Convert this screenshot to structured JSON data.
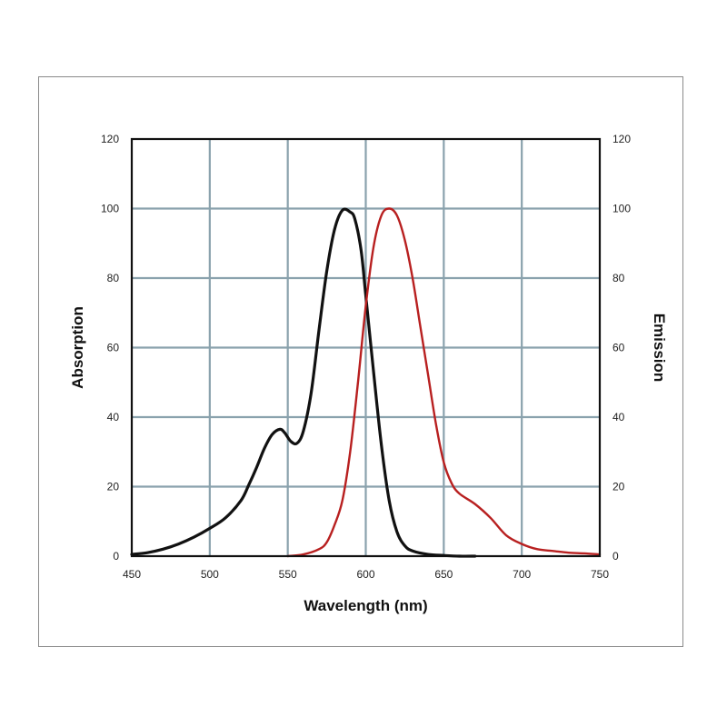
{
  "chart_data": {
    "type": "line",
    "title": "",
    "xlabel": "Wavelength (nm)",
    "ylabel": "Absorption",
    "y2label": "Emission",
    "xlim": [
      450,
      750
    ],
    "ylim": [
      0,
      120
    ],
    "y2lim": [
      0,
      120
    ],
    "xticks": [
      450,
      500,
      550,
      600,
      650,
      700,
      750
    ],
    "yticks": [
      0,
      20,
      40,
      60,
      80,
      100,
      120
    ],
    "grid": true,
    "legend": "none",
    "series": [
      {
        "axis": "left",
        "color": "#111111",
        "x": [
          450,
          460,
          470,
          480,
          490,
          500,
          510,
          520,
          525,
          530,
          535,
          540,
          545,
          548,
          552,
          556,
          560,
          565,
          570,
          575,
          580,
          585,
          590,
          593,
          597,
          600,
          605,
          610,
          615,
          620,
          625,
          630,
          640,
          650,
          660,
          670
        ],
        "y": [
          0.5,
          1,
          2,
          3.5,
          5.5,
          8,
          11,
          16,
          20.5,
          25.5,
          31,
          35,
          36.5,
          35.5,
          33,
          32.5,
          36,
          47,
          65,
          82,
          94,
          99.5,
          99,
          97,
          88,
          75,
          53,
          32,
          16,
          7,
          3,
          1.5,
          0.5,
          0.2,
          0,
          0
        ]
      },
      {
        "axis": "right",
        "color": "#b82020",
        "x": [
          550,
          560,
          570,
          575,
          580,
          585,
          590,
          595,
          600,
          605,
          610,
          615,
          620,
          625,
          630,
          635,
          640,
          645,
          650,
          655,
          660,
          670,
          680,
          690,
          700,
          710,
          720,
          730,
          740,
          750
        ],
        "y": [
          0,
          0.5,
          2,
          4,
          9,
          16,
          30,
          50,
          72,
          89,
          98,
          100,
          98,
          91,
          80,
          66,
          52,
          38,
          27,
          21,
          18,
          15,
          11,
          6,
          3.5,
          2,
          1.5,
          1,
          0.8,
          0.5
        ]
      }
    ]
  }
}
